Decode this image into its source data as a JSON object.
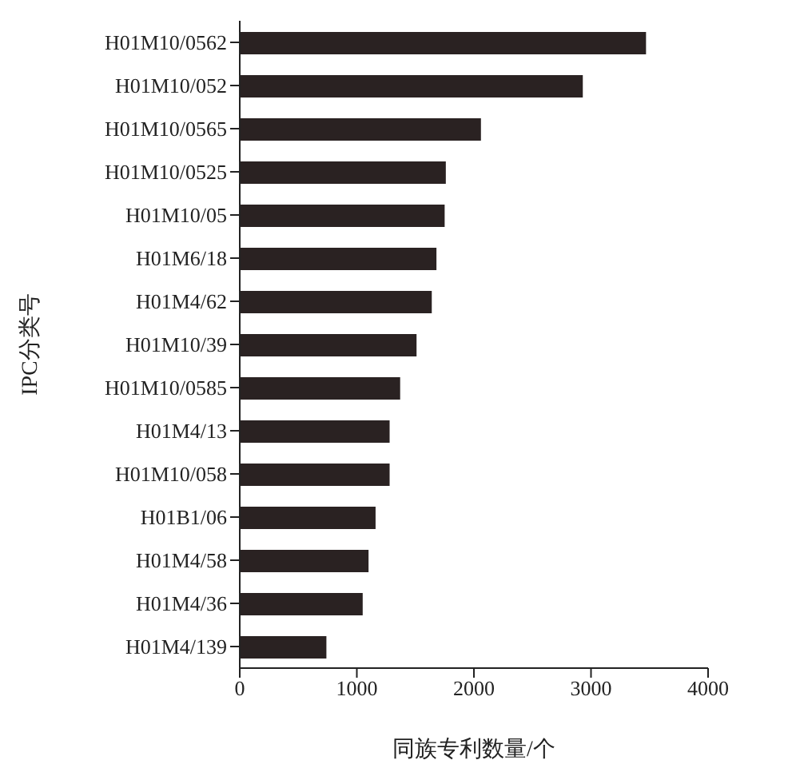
{
  "chart_data": {
    "type": "bar",
    "orientation": "horizontal",
    "xlabel": "同族专利数量/个",
    "ylabel": "IPC分类号",
    "categories": [
      "H01M10/0562",
      "H01M10/052",
      "H01M10/0565",
      "H01M10/0525",
      "H01M10/05",
      "H01M6/18",
      "H01M4/62",
      "H01M10/39",
      "H01M10/0585",
      "H01M4/13",
      "H01M10/058",
      "H01B1/06",
      "H01M4/58",
      "H01M4/36",
      "H01M4/139"
    ],
    "values": [
      3470,
      2930,
      2060,
      1760,
      1750,
      1680,
      1640,
      1510,
      1370,
      1280,
      1280,
      1160,
      1100,
      1050,
      740
    ],
    "color": "#2a2222",
    "xlim": [
      0,
      4000
    ],
    "xticks": [
      0,
      1000,
      2000,
      3000,
      4000
    ],
    "grid": false,
    "legend": false
  }
}
